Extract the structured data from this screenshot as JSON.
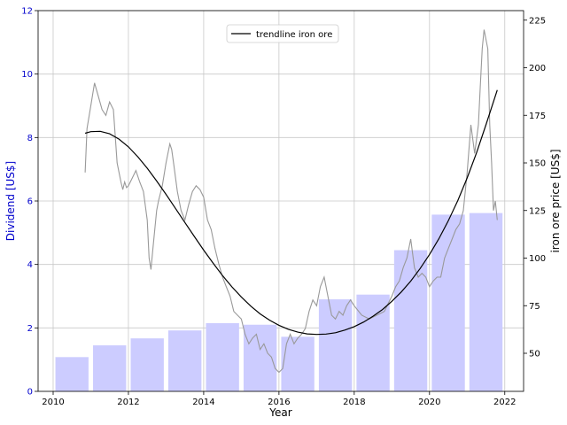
{
  "chart_data": {
    "type": "bar",
    "xlabel": "Year",
    "ylabel_left": "Dividend [US$]",
    "ylabel_right": "iron ore price [US$]",
    "x_range": [
      2009.6,
      2022.5
    ],
    "x_ticks": [
      2010,
      2012,
      2014,
      2016,
      2018,
      2020,
      2022
    ],
    "y_left_range": [
      0,
      12
    ],
    "y_left_ticks": [
      0,
      2,
      4,
      6,
      8,
      10,
      12
    ],
    "y_right_range": [
      30,
      230
    ],
    "y_right_ticks": [
      50,
      75,
      100,
      125,
      150,
      175,
      200,
      225
    ],
    "grid": true,
    "legend_position": "upper center",
    "colors": {
      "bars": "#ccccff",
      "left_axis": "#0000cc",
      "price_line": "#999999",
      "trendline": "#000000",
      "grid": "#c8c8c8"
    },
    "dividend_bars": {
      "x": [
        2010.5,
        2011.5,
        2012.5,
        2013.5,
        2014.5,
        2015.5,
        2016.5,
        2017.5,
        2018.5,
        2019.5,
        2020.5,
        2021.5
      ],
      "values": [
        1.08,
        1.45,
        1.67,
        1.92,
        2.15,
        2.1,
        1.72,
        2.9,
        3.05,
        4.45,
        5.57,
        5.62
      ]
    },
    "iron_ore_price": {
      "x": [
        2010.85,
        2010.9,
        2011.0,
        2011.1,
        2011.2,
        2011.3,
        2011.4,
        2011.5,
        2011.6,
        2011.7,
        2011.8,
        2011.85,
        2011.9,
        2011.95,
        2012.0,
        2012.1,
        2012.2,
        2012.3,
        2012.4,
        2012.5,
        2012.55,
        2012.6,
        2012.65,
        2012.7,
        2012.75,
        2012.8,
        2012.9,
        2013.0,
        2013.1,
        2013.15,
        2013.2,
        2013.3,
        2013.4,
        2013.5,
        2013.6,
        2013.7,
        2013.8,
        2013.9,
        2014.0,
        2014.1,
        2014.2,
        2014.3,
        2014.4,
        2014.5,
        2014.6,
        2014.7,
        2014.8,
        2014.9,
        2015.0,
        2015.1,
        2015.2,
        2015.3,
        2015.4,
        2015.5,
        2015.6,
        2015.7,
        2015.8,
        2015.9,
        2016.0,
        2016.1,
        2016.2,
        2016.3,
        2016.4,
        2016.5,
        2016.6,
        2016.7,
        2016.8,
        2016.9,
        2017.0,
        2017.1,
        2017.2,
        2017.3,
        2017.4,
        2017.5,
        2017.6,
        2017.7,
        2017.8,
        2017.9,
        2018.0,
        2018.2,
        2018.4,
        2018.6,
        2018.8,
        2019.0,
        2019.1,
        2019.2,
        2019.3,
        2019.4,
        2019.5,
        2019.6,
        2019.7,
        2019.8,
        2019.9,
        2020.0,
        2020.1,
        2020.2,
        2020.3,
        2020.4,
        2020.5,
        2020.6,
        2020.7,
        2020.8,
        2020.9,
        2021.0,
        2021.1,
        2021.2,
        2021.3,
        2021.35,
        2021.4,
        2021.45,
        2021.5,
        2021.55,
        2021.6,
        2021.65,
        2021.7,
        2021.75,
        2021.8
      ],
      "values": [
        145,
        168,
        180,
        192,
        185,
        178,
        175,
        182,
        178,
        150,
        140,
        136,
        140,
        137,
        138,
        142,
        146,
        140,
        135,
        120,
        100,
        94,
        105,
        115,
        125,
        130,
        138,
        150,
        160,
        157,
        150,
        135,
        125,
        120,
        128,
        135,
        138,
        136,
        132,
        120,
        115,
        105,
        97,
        90,
        85,
        80,
        72,
        70,
        68,
        60,
        55,
        58,
        60,
        52,
        55,
        50,
        48,
        42,
        40,
        42,
        55,
        60,
        55,
        58,
        60,
        63,
        72,
        78,
        75,
        85,
        90,
        80,
        70,
        68,
        72,
        70,
        75,
        78,
        75,
        70,
        68,
        70,
        72,
        80,
        85,
        88,
        95,
        100,
        110,
        95,
        90,
        92,
        90,
        85,
        88,
        90,
        90,
        100,
        105,
        110,
        115,
        118,
        125,
        145,
        170,
        155,
        170,
        190,
        210,
        220,
        215,
        210,
        170,
        150,
        125,
        130,
        120
      ]
    },
    "trendline": {
      "x": [
        2010.85,
        2011.0,
        2011.25,
        2011.5,
        2011.75,
        2012.0,
        2012.25,
        2012.5,
        2012.75,
        2013.0,
        2013.25,
        2013.5,
        2013.75,
        2014.0,
        2014.25,
        2014.5,
        2014.75,
        2015.0,
        2015.25,
        2015.5,
        2015.75,
        2016.0,
        2016.25,
        2016.5,
        2016.75,
        2017.0,
        2017.25,
        2017.5,
        2017.75,
        2018.0,
        2018.25,
        2018.5,
        2018.75,
        2019.0,
        2019.25,
        2019.5,
        2019.75,
        2020.0,
        2020.25,
        2020.5,
        2020.75,
        2021.0,
        2021.25,
        2021.5,
        2021.8
      ],
      "values": [
        165.6,
        166.4,
        166.6,
        165.3,
        162.5,
        158.4,
        153.2,
        147.2,
        140.5,
        133.5,
        126.1,
        118.7,
        111.4,
        104.2,
        97.4,
        90.8,
        84.9,
        79.6,
        74.8,
        70.7,
        67.4,
        64.7,
        62.6,
        61.1,
        60.2,
        59.9,
        60.1,
        60.8,
        62.2,
        64.0,
        66.4,
        69.5,
        73.0,
        77.3,
        82.2,
        87.9,
        94.5,
        101.9,
        110.2,
        119.6,
        130.2,
        142.1,
        155.3,
        170.0,
        188.3
      ]
    },
    "legend": [
      "trendline iron ore"
    ]
  }
}
